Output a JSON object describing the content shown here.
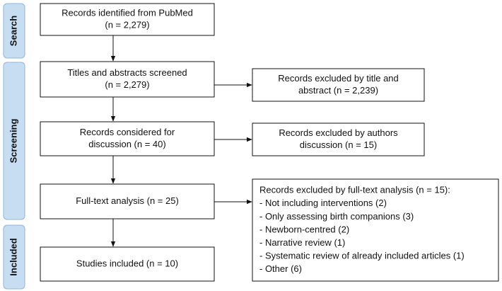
{
  "stages": [
    "Search",
    "Screening",
    "Included"
  ],
  "nodes": [
    {
      "lines": [
        "Records identified from PubMed",
        "(n = 2,279)"
      ]
    },
    {
      "lines": [
        "Titles and abstracts screened",
        "(n = 2,279)"
      ]
    },
    {
      "lines": [
        "Records excluded by title and",
        "abstract (n = 2,239)"
      ]
    },
    {
      "lines": [
        "Records considered for",
        "discussion (n = 40)"
      ]
    },
    {
      "lines": [
        "Records excluded by authors",
        "discussion (n = 15)"
      ]
    },
    {
      "lines": [
        "Full-text analysis (n = 25)"
      ]
    },
    {
      "lines": [
        "Records excluded by full-text analysis (n = 15):",
        "- Not including interventions (2)",
        "- Only assessing birth companions (3)",
        "- Newborn-centred (2)",
        "- Narrative review (1)",
        "- Systematic review of already included articles (1)",
        "- Other (6)"
      ]
    },
    {
      "lines": [
        "Studies included (n = 10)"
      ]
    }
  ]
}
